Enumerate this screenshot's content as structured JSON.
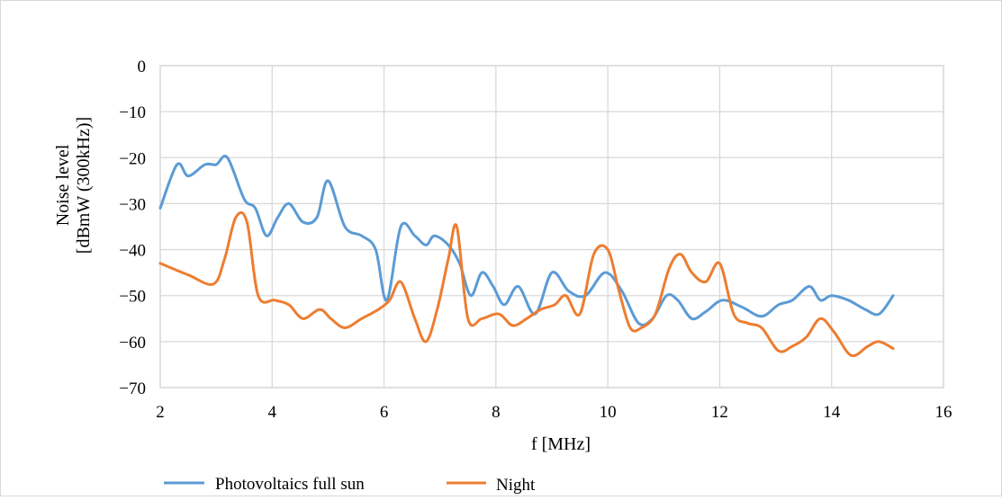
{
  "chart_data": {
    "type": "line",
    "title": "",
    "xlabel": "f [MHz]",
    "ylabel_lines": [
      "Noise level",
      "[dBmW (300kHz)]"
    ],
    "xlim": [
      2,
      16
    ],
    "ylim": [
      -70,
      0
    ],
    "x_ticks": [
      2,
      4,
      6,
      8,
      10,
      12,
      14,
      16
    ],
    "y_ticks": [
      0,
      -10,
      -20,
      -30,
      -40,
      -50,
      -60,
      -70
    ],
    "x_tick_labels": [
      "2",
      "4",
      "6",
      "8",
      "10",
      "12",
      "14",
      "16"
    ],
    "y_tick_labels": [
      "0",
      "−10",
      "−20",
      "−30",
      "−40",
      "−50",
      "−60",
      "−70"
    ],
    "grid": true,
    "legend_position": "bottom",
    "series": [
      {
        "name": "Photovoltaics full sun",
        "color": "#5b9bd5",
        "x": [
          2.0,
          2.3,
          2.5,
          2.8,
          3.0,
          3.2,
          3.5,
          3.7,
          3.9,
          4.1,
          4.3,
          4.55,
          4.8,
          5.0,
          5.3,
          5.6,
          5.85,
          6.05,
          6.3,
          6.55,
          6.75,
          6.9,
          7.15,
          7.35,
          7.55,
          7.75,
          7.95,
          8.15,
          8.4,
          8.7,
          9.0,
          9.3,
          9.6,
          9.95,
          10.25,
          10.55,
          10.8,
          11.05,
          11.25,
          11.5,
          11.75,
          12.05,
          12.4,
          12.75,
          13.05,
          13.3,
          13.6,
          13.8,
          14.0,
          14.3,
          14.6,
          14.85,
          15.1
        ],
        "y": [
          -31,
          -21.5,
          -24,
          -21.5,
          -21.5,
          -20,
          -29,
          -31,
          -37,
          -33,
          -30,
          -34,
          -33,
          -25,
          -35,
          -37,
          -40,
          -51,
          -35,
          -37,
          -39,
          -37,
          -39,
          -43,
          -50,
          -45,
          -48,
          -52,
          -48,
          -54,
          -45,
          -49,
          -50,
          -45,
          -49,
          -56,
          -55,
          -50,
          -51,
          -55,
          -53.5,
          -51,
          -52.5,
          -54.5,
          -52,
          -51,
          -48,
          -51,
          -50,
          -51,
          -53,
          -54,
          -50
        ]
      },
      {
        "name": "Night",
        "color": "#ed7d31",
        "x": [
          2.0,
          2.5,
          2.95,
          3.15,
          3.35,
          3.55,
          3.75,
          4.05,
          4.3,
          4.55,
          4.85,
          5.05,
          5.3,
          5.6,
          5.9,
          6.1,
          6.3,
          6.55,
          6.75,
          6.95,
          7.15,
          7.3,
          7.5,
          7.75,
          8.05,
          8.3,
          8.55,
          8.8,
          9.05,
          9.25,
          9.5,
          9.75,
          10.0,
          10.2,
          10.4,
          10.6,
          10.85,
          11.1,
          11.3,
          11.5,
          11.75,
          12.0,
          12.25,
          12.5,
          12.75,
          13.05,
          13.3,
          13.55,
          13.8,
          14.05,
          14.35,
          14.65,
          14.85,
          15.1
        ],
        "y": [
          -43,
          -45.5,
          -47.5,
          -42,
          -33,
          -34,
          -50,
          -51,
          -52,
          -55,
          -53,
          -55,
          -57,
          -55,
          -53,
          -51,
          -47,
          -55,
          -60,
          -53,
          -42,
          -35,
          -55,
          -55,
          -54,
          -56.5,
          -55,
          -53,
          -52,
          -50,
          -54,
          -41,
          -40,
          -49,
          -57,
          -57,
          -54,
          -44,
          -41,
          -45,
          -47,
          -43,
          -54,
          -56,
          -57,
          -62,
          -61,
          -59,
          -55,
          -58,
          -63,
          -61,
          -60,
          -61.5
        ]
      }
    ]
  }
}
